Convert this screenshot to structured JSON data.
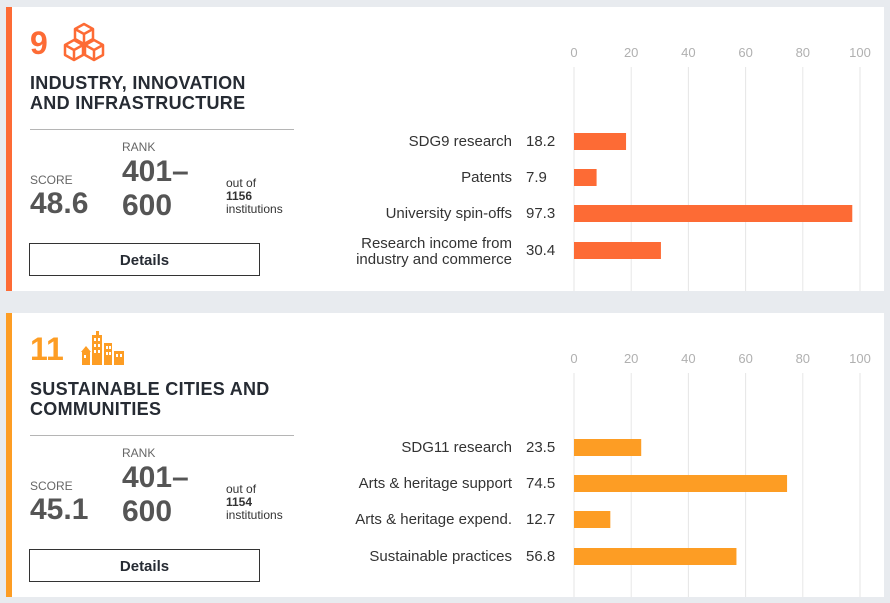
{
  "cards": [
    {
      "number": "9",
      "color": "#fd6b35",
      "icon": "building-blocks-icon",
      "title_line1": "INDUSTRY, INNOVATION",
      "title_line2": "AND INFRASTRUCTURE",
      "score_label": "SCORE",
      "score": "48.6",
      "rank_label": "RANK",
      "rank_line1": "401–",
      "rank_line2": "600",
      "out_of": "out of",
      "institutions_count": "1156",
      "institutions": "institutions",
      "details_label": "Details",
      "chart_data": {
        "type": "bar",
        "orientation": "horizontal",
        "xlim": [
          0,
          100
        ],
        "ticks": [
          "0",
          "20",
          "40",
          "60",
          "80",
          "100"
        ],
        "categories": [
          [
            "SDG9 research"
          ],
          [
            "Patents"
          ],
          [
            "University spin-offs"
          ],
          [
            "Research income from",
            "industry and commerce"
          ]
        ],
        "values": [
          18.2,
          7.9,
          97.3,
          30.4
        ],
        "value_labels": [
          "18.2",
          "7.9",
          "97.3",
          "30.4"
        ],
        "grid": true
      }
    },
    {
      "number": "11",
      "color": "#fd9d24",
      "icon": "city-buildings-icon",
      "title_line1": "SUSTAINABLE CITIES AND",
      "title_line2": "COMMUNITIES",
      "score_label": "SCORE",
      "score": "45.1",
      "rank_label": "RANK",
      "rank_line1": "401–",
      "rank_line2": "600",
      "out_of": "out of",
      "institutions_count": "1154",
      "institutions": "institutions",
      "details_label": "Details",
      "chart_data": {
        "type": "bar",
        "orientation": "horizontal",
        "xlim": [
          0,
          100
        ],
        "ticks": [
          "0",
          "20",
          "40",
          "60",
          "80",
          "100"
        ],
        "categories": [
          [
            "SDG11 research"
          ],
          [
            "Arts & heritage support"
          ],
          [
            "Arts & heritage expend."
          ],
          [
            "Sustainable practices"
          ]
        ],
        "values": [
          23.5,
          74.5,
          12.7,
          56.8
        ],
        "value_labels": [
          "23.5",
          "74.5",
          "12.7",
          "56.8"
        ],
        "grid": true
      }
    }
  ]
}
